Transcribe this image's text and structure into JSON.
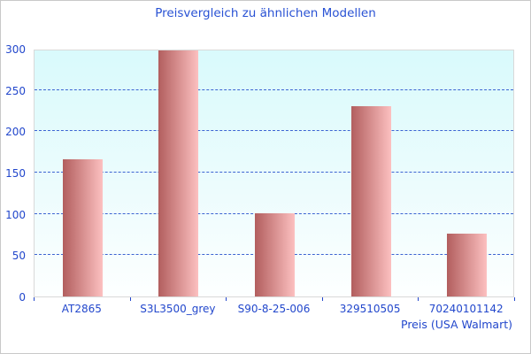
{
  "title": "Preisvergleich zu ähnlichen Modellen",
  "chart_data": {
    "type": "bar",
    "title": "Preisvergleich zu ähnlichen Modellen",
    "categories": [
      "AT2865",
      "S3L3500_grey",
      "S90-8-25-006",
      "329510505",
      "70240101142"
    ],
    "values": [
      166,
      298,
      101,
      230,
      76
    ],
    "xlabel": "Preis (USA Walmart)",
    "ylabel": "",
    "ylim": [
      0,
      300
    ],
    "yticks": [
      0,
      50,
      100,
      150,
      200,
      250,
      300
    ],
    "grid": "horizontal-dashed",
    "legend": "none"
  },
  "colors": {
    "title_text": "#2952d4",
    "tick_text": "#2247cc",
    "gridline": "#3c64d2",
    "bar_gradient_left": "#b25e5e",
    "bar_gradient_right": "#fcc0c0",
    "plot_bg_top": "#d9fafc",
    "plot_bg_bottom": "#fdffff",
    "plot_border": "#d9d9d9",
    "canvas_border": "#c9c9c9"
  }
}
